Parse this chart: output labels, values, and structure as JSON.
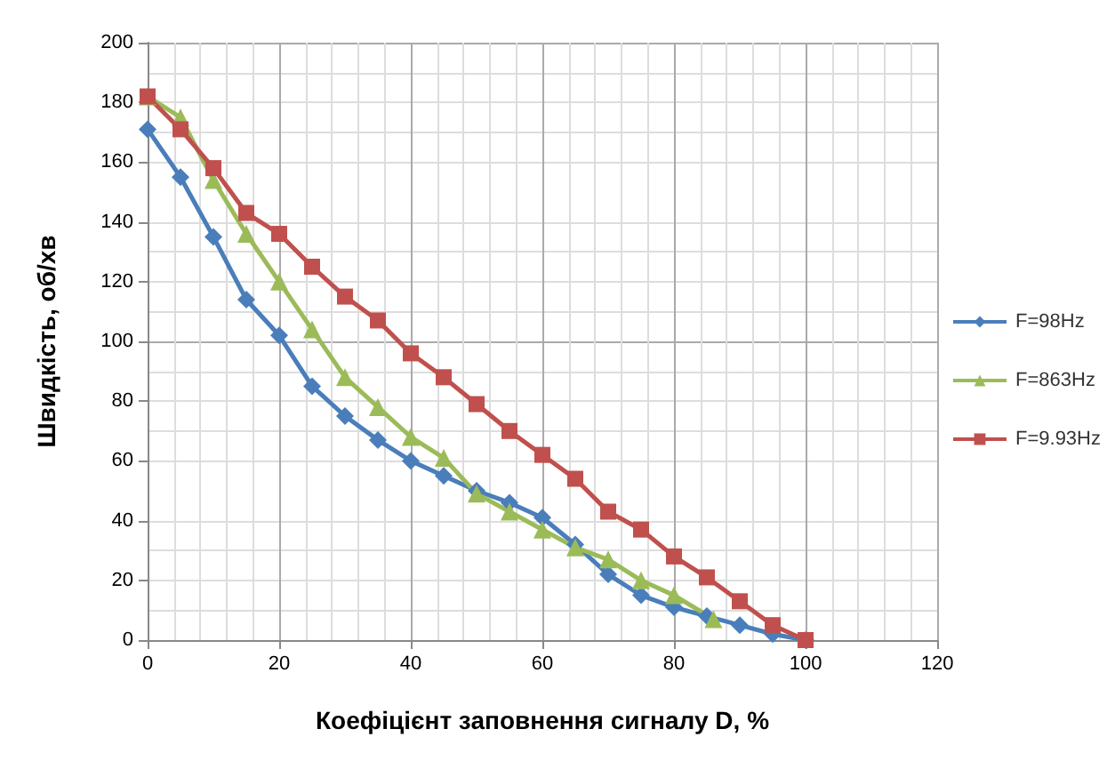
{
  "chart_data": {
    "type": "line",
    "xlabel": "Коефіцієнт заповнення сигналу D, %",
    "ylabel": "Швидкість, об/хв",
    "xlim": [
      0,
      120
    ],
    "xticks": [
      0,
      20,
      40,
      60,
      80,
      100,
      120
    ],
    "ylim": [
      0,
      200
    ],
    "yticks": [
      0,
      20,
      40,
      60,
      80,
      100,
      120,
      140,
      160,
      180,
      200
    ],
    "grid": true,
    "legend": "right",
    "series": [
      {
        "name": "F=98Hz",
        "color": "#4a7ebb",
        "marker": "diamond",
        "x": [
          0,
          5,
          10,
          15,
          20,
          25,
          30,
          35,
          40,
          45,
          50,
          55,
          60,
          65,
          70,
          75,
          80,
          85,
          90,
          95,
          100
        ],
        "values": [
          171,
          155,
          135,
          114,
          102,
          85,
          75,
          67,
          60,
          55,
          50,
          46,
          41,
          32,
          22,
          15,
          11,
          8,
          5,
          2,
          0
        ]
      },
      {
        "name": "F=863Hz",
        "color": "#9bbb59",
        "marker": "triangle",
        "x": [
          0,
          5,
          10,
          15,
          20,
          25,
          30,
          35,
          40,
          45,
          50,
          55,
          60,
          65,
          70,
          75,
          80,
          86
        ],
        "values": [
          182,
          175,
          154,
          136,
          120,
          104,
          88,
          78,
          68,
          61,
          49,
          43,
          37,
          31,
          27,
          20,
          15,
          7
        ]
      },
      {
        "name": "F=9.93Hz",
        "color": "#c0504d",
        "marker": "square",
        "x": [
          0,
          5,
          10,
          15,
          20,
          25,
          30,
          35,
          40,
          45,
          50,
          55,
          60,
          65,
          70,
          75,
          80,
          85,
          90,
          95,
          100
        ],
        "values": [
          182,
          171,
          158,
          143,
          136,
          125,
          115,
          107,
          96,
          88,
          79,
          70,
          62,
          54,
          43,
          37,
          28,
          21,
          13,
          5,
          0
        ]
      }
    ]
  }
}
